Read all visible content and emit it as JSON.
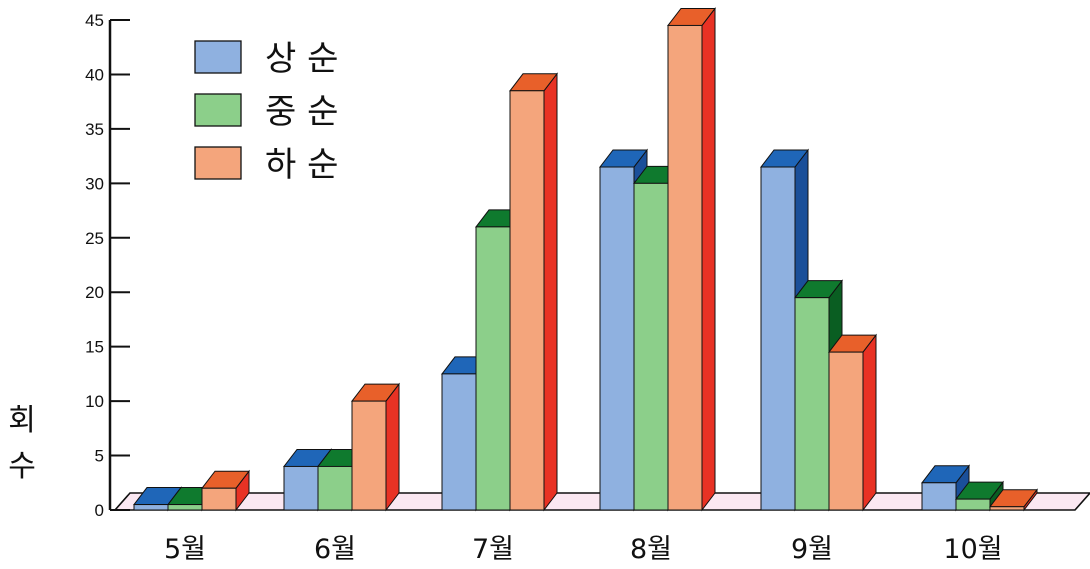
{
  "chart_data": {
    "type": "bar",
    "style": "3d-grouped",
    "categories": [
      "5월",
      "6월",
      "7월",
      "8월",
      "9월",
      "10월"
    ],
    "series": [
      {
        "name": "상 순",
        "values": [
          0.5,
          4,
          12.5,
          31.5,
          31.5,
          2.5
        ],
        "color": "#8fb1e0",
        "top_color": "#1f66b8",
        "side_color": "#1a4f99"
      },
      {
        "name": "중 순",
        "values": [
          0.5,
          4,
          26,
          30,
          19.5,
          1
        ],
        "color": "#8ccf8a",
        "top_color": "#0f7a2e",
        "side_color": "#0a5e22"
      },
      {
        "name": "하 순",
        "values": [
          2,
          10,
          38.5,
          44.5,
          14.5,
          0.3
        ],
        "color": "#f4a57c",
        "top_color": "#e8602a",
        "side_color": "#e83224"
      }
    ],
    "ylabel": "회수",
    "ylim": [
      0,
      45
    ],
    "yticks": [
      0,
      5,
      10,
      15,
      20,
      25,
      30,
      35,
      40,
      45
    ],
    "floor_color": "#fbe8f2",
    "grid": false,
    "legend": "top-left"
  }
}
